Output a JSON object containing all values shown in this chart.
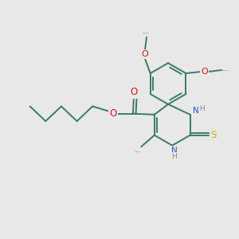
{
  "background_color": "#e8e8e8",
  "bond_color": "#3a7a6a",
  "bond_width": 1.4,
  "figsize": [
    3.0,
    3.0
  ],
  "dpi": 100,
  "atom_colors": {
    "O": "#dd1111",
    "N": "#2255cc",
    "S": "#bbbb00",
    "H": "#888888"
  },
  "xlim": [
    -2.8,
    3.0
  ],
  "ylim": [
    -2.5,
    2.8
  ]
}
